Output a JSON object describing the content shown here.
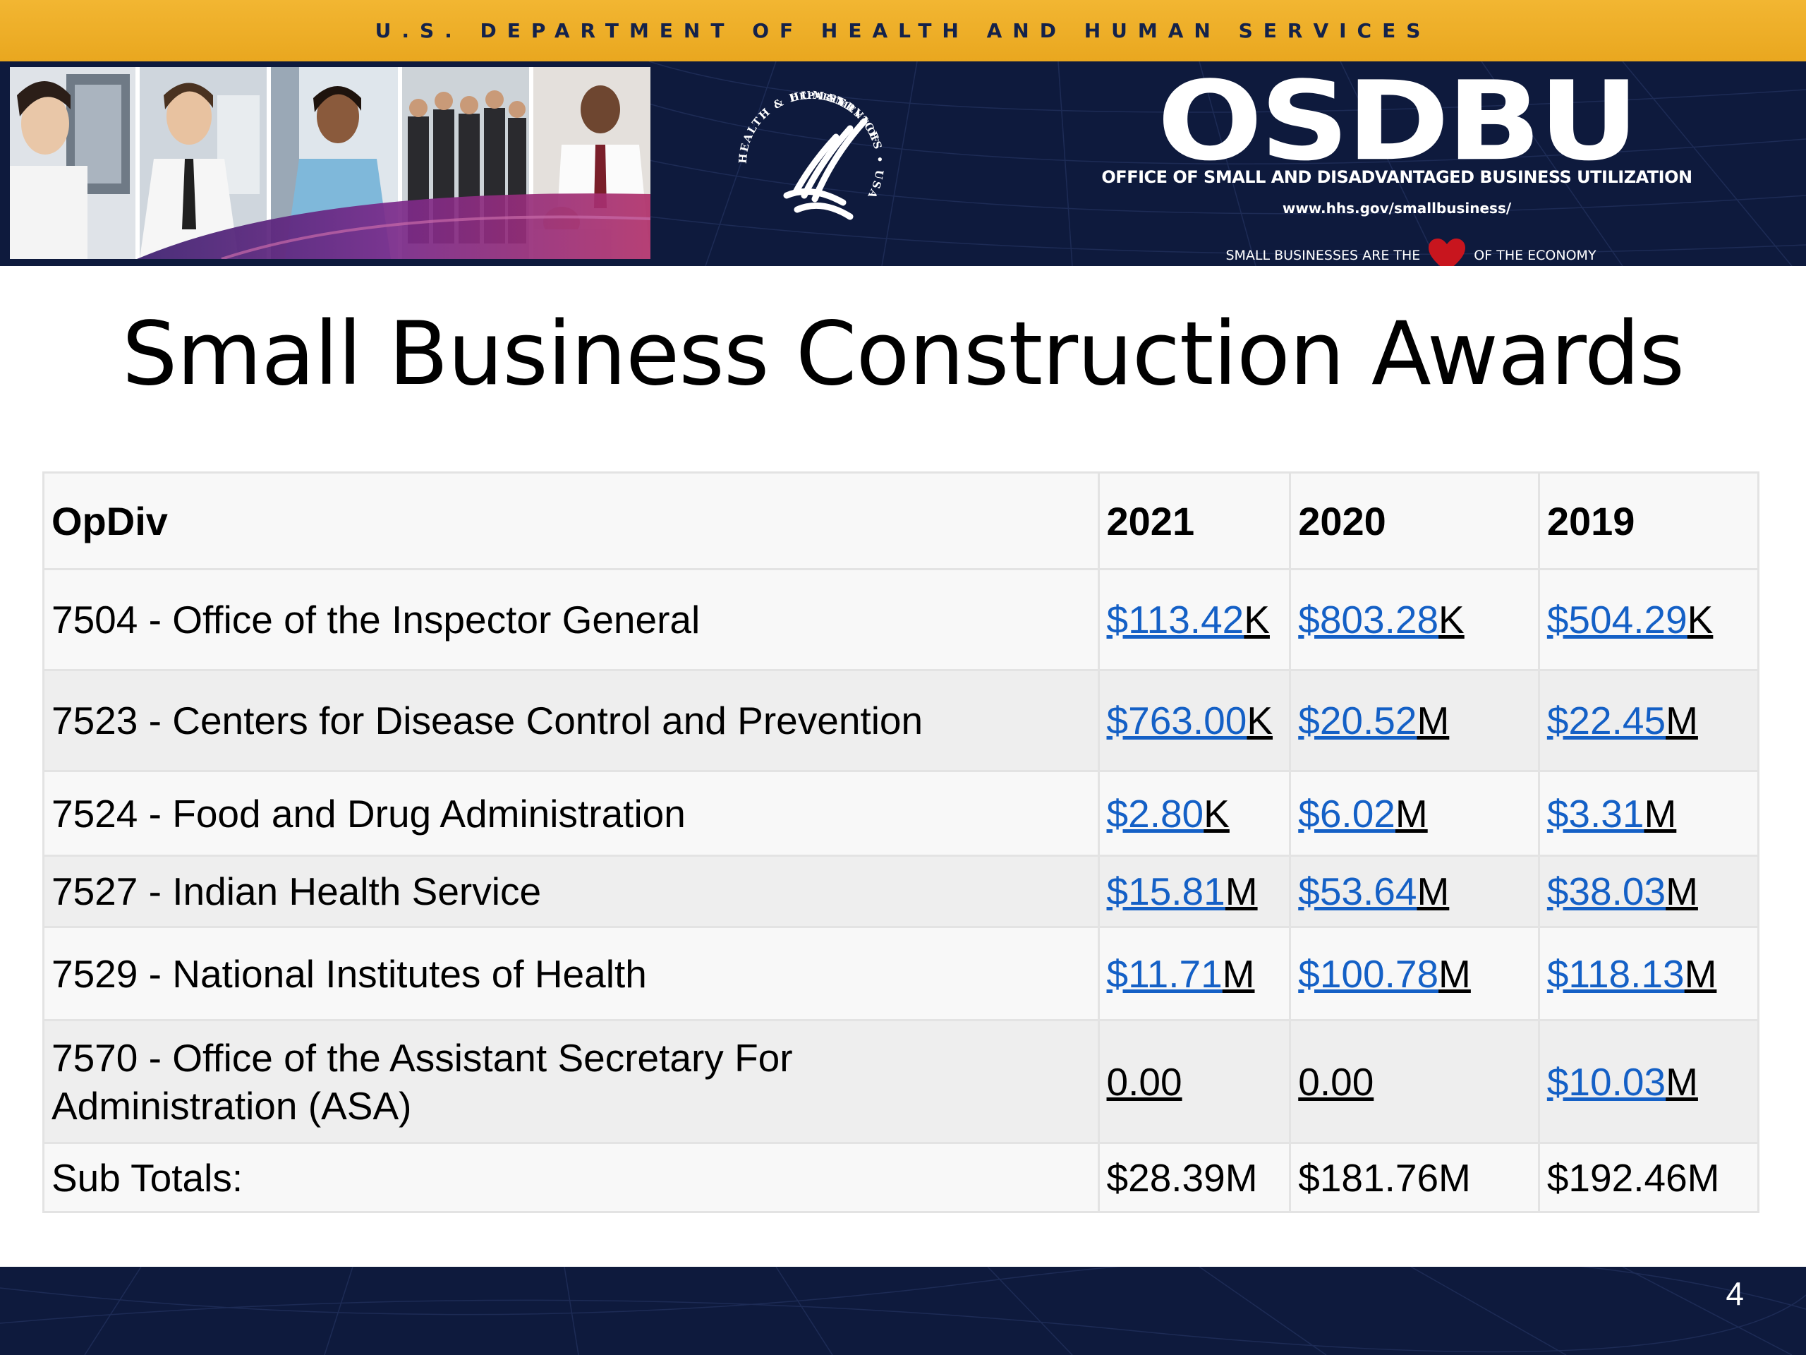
{
  "header": {
    "department": "U.S. DEPARTMENT OF HEALTH AND HUMAN SERVICES",
    "seal_icon": "hhs-eagle-seal-icon",
    "seal_text": "SERVICES • USA",
    "seal_text_left": "HEALTH & HUMAN",
    "seal_text_bottom": "DEPARTMENT OF",
    "logo": "OSDBU",
    "office_name": "OFFICE OF SMALL AND DISADVANTAGED BUSINESS UTILIZATION",
    "url": "www.hhs.gov/smallbusiness/",
    "tagline_start": "SMALL BUSINESSES ARE THE",
    "tagline_icon": "heart-icon",
    "tagline_end": "OF THE ECONOMY",
    "brand_colors": {
      "gold": "#f2b632",
      "navy": "#0e1a3d",
      "heart": "#c8151e"
    }
  },
  "slide": {
    "title": "Small Business Construction Awards",
    "page_number": "4"
  },
  "table": {
    "headers": [
      "OpDiv",
      "2021",
      "2020",
      "2019"
    ],
    "link_color": "#1460c6",
    "rows": [
      {
        "opdiv": "7504 - Office of the Inspector General",
        "values": [
          {
            "amount": "$113.42",
            "unit": "K"
          },
          {
            "amount": "$803.28",
            "unit": "K"
          },
          {
            "amount": "$504.29",
            "unit": "K"
          }
        ]
      },
      {
        "opdiv": "7523 - Centers for Disease Control and Prevention",
        "values": [
          {
            "amount": "$763.00",
            "unit": "K"
          },
          {
            "amount": "$20.52",
            "unit": "M"
          },
          {
            "amount": "$22.45",
            "unit": "M"
          }
        ]
      },
      {
        "opdiv": "7524 - Food and Drug Administration",
        "values": [
          {
            "amount": "$2.80",
            "unit": "K"
          },
          {
            "amount": "$6.02",
            "unit": "M"
          },
          {
            "amount": "$3.31",
            "unit": "M"
          }
        ]
      },
      {
        "opdiv": "7527 - Indian Health Service",
        "values": [
          {
            "amount": "$15.81",
            "unit": "M"
          },
          {
            "amount": "$53.64",
            "unit": "M"
          },
          {
            "amount": "$38.03",
            "unit": "M"
          }
        ]
      },
      {
        "opdiv": "7529 - National Institutes of Health",
        "values": [
          {
            "amount": "$11.71",
            "unit": "M"
          },
          {
            "amount": "$100.78",
            "unit": "M"
          },
          {
            "amount": "$118.13",
            "unit": "M"
          }
        ]
      },
      {
        "opdiv_line1": "7570 - Office of the Assistant Secretary For",
        "opdiv_line2": "Administration (ASA)",
        "values": [
          {
            "plain": "0.00"
          },
          {
            "plain": "0.00"
          },
          {
            "amount": "$10.03",
            "unit": "M"
          }
        ]
      }
    ],
    "subtotals": {
      "label": "Sub Totals:",
      "values": [
        "$28.39M",
        "$181.76M",
        "$192.46M"
      ]
    }
  }
}
